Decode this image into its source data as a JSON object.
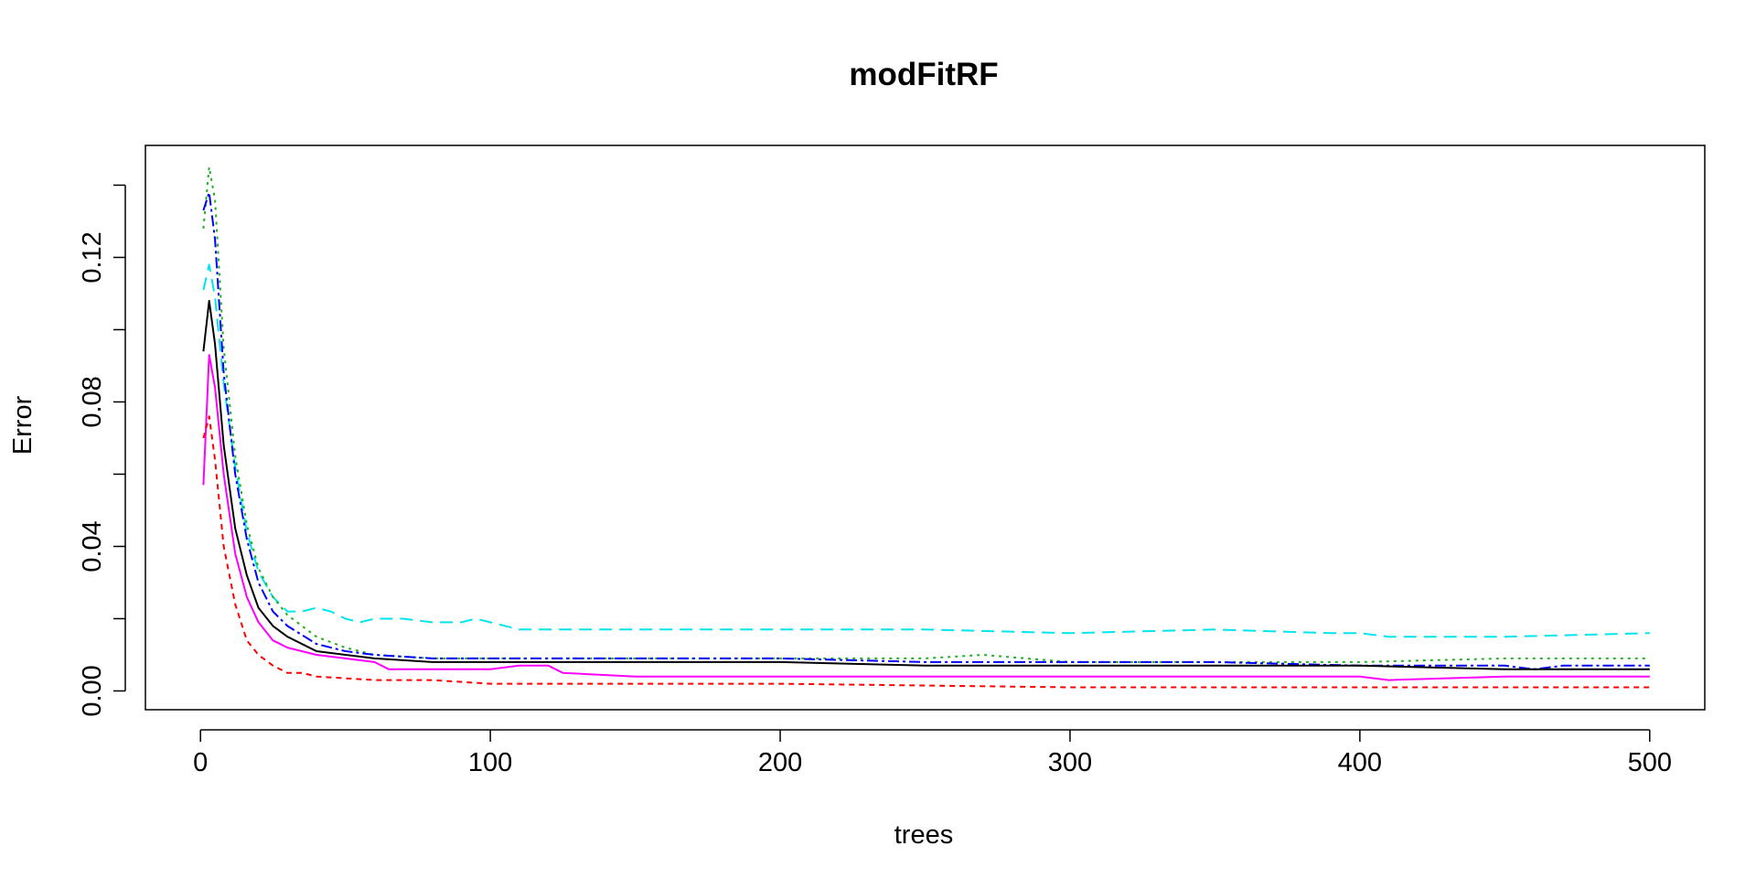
{
  "chart_data": {
    "type": "line",
    "title": "modFitRF",
    "xlabel": "trees",
    "ylabel": "Error",
    "xlim": [
      -19,
      519
    ],
    "ylim": [
      -0.0052,
      0.151
    ],
    "xticks": [
      0,
      100,
      200,
      300,
      400,
      500
    ],
    "xtick_labels": [
      "0",
      "100",
      "200",
      "300",
      "400",
      "500"
    ],
    "yticks": [
      0.0,
      0.02,
      0.04,
      0.06,
      0.08,
      0.1,
      0.12,
      0.14
    ],
    "ytick_labels": [
      "0.00",
      "",
      "0.04",
      "",
      "0.08",
      "",
      "0.12",
      ""
    ],
    "grid": false,
    "legend": "none",
    "series": [
      {
        "color": "#00e5ee",
        "dash": "14,8",
        "x": [
          1,
          3,
          5,
          8,
          12,
          16,
          20,
          25,
          30,
          35,
          40,
          45,
          50,
          55,
          60,
          70,
          80,
          90,
          95,
          100,
          110,
          120,
          150,
          200,
          250,
          300,
          350,
          390,
          400,
          410,
          450,
          500
        ],
        "values": [
          0.111,
          0.118,
          0.109,
          0.085,
          0.062,
          0.044,
          0.033,
          0.026,
          0.022,
          0.022,
          0.023,
          0.022,
          0.02,
          0.019,
          0.02,
          0.02,
          0.019,
          0.019,
          0.02,
          0.019,
          0.017,
          0.017,
          0.017,
          0.017,
          0.017,
          0.016,
          0.017,
          0.016,
          0.016,
          0.015,
          0.015,
          0.016
        ]
      },
      {
        "color": "#22b022",
        "dash": "3,5",
        "x": [
          1,
          3,
          5,
          8,
          12,
          16,
          20,
          25,
          30,
          40,
          50,
          60,
          80,
          100,
          120,
          150,
          200,
          250,
          270,
          300,
          350,
          400,
          450,
          500
        ],
        "values": [
          0.128,
          0.145,
          0.136,
          0.095,
          0.065,
          0.046,
          0.034,
          0.026,
          0.021,
          0.015,
          0.012,
          0.01,
          0.009,
          0.009,
          0.009,
          0.009,
          0.009,
          0.009,
          0.01,
          0.008,
          0.008,
          0.008,
          0.009,
          0.009
        ]
      },
      {
        "color": "#0000ff",
        "dash": "12,4,3,4",
        "x": [
          1,
          3,
          5,
          8,
          12,
          16,
          20,
          25,
          30,
          40,
          50,
          60,
          80,
          100,
          150,
          200,
          250,
          300,
          350,
          400,
          450,
          460,
          470,
          500
        ],
        "values": [
          0.133,
          0.138,
          0.125,
          0.088,
          0.06,
          0.042,
          0.03,
          0.022,
          0.018,
          0.013,
          0.011,
          0.01,
          0.009,
          0.009,
          0.009,
          0.009,
          0.008,
          0.008,
          0.008,
          0.007,
          0.007,
          0.006,
          0.007,
          0.007
        ]
      },
      {
        "color": "#000000",
        "dash": "",
        "x": [
          1,
          3,
          5,
          8,
          12,
          16,
          20,
          25,
          30,
          40,
          50,
          60,
          80,
          100,
          150,
          200,
          250,
          300,
          350,
          400,
          450,
          500
        ],
        "values": [
          0.094,
          0.108,
          0.096,
          0.068,
          0.045,
          0.032,
          0.023,
          0.018,
          0.015,
          0.011,
          0.01,
          0.009,
          0.008,
          0.008,
          0.008,
          0.008,
          0.007,
          0.007,
          0.007,
          0.007,
          0.006,
          0.006
        ]
      },
      {
        "color": "#ff00ff",
        "dash": "",
        "x": [
          1,
          3,
          5,
          8,
          12,
          16,
          20,
          25,
          30,
          40,
          50,
          60,
          65,
          70,
          100,
          110,
          120,
          125,
          150,
          200,
          250,
          300,
          350,
          400,
          410,
          450,
          500
        ],
        "values": [
          0.057,
          0.093,
          0.084,
          0.06,
          0.038,
          0.026,
          0.019,
          0.014,
          0.012,
          0.01,
          0.009,
          0.008,
          0.006,
          0.006,
          0.006,
          0.007,
          0.007,
          0.005,
          0.004,
          0.004,
          0.004,
          0.004,
          0.004,
          0.004,
          0.003,
          0.004,
          0.004
        ]
      },
      {
        "color": "#ff0000",
        "dash": "6,5",
        "x": [
          1,
          3,
          5,
          8,
          12,
          16,
          20,
          25,
          30,
          35,
          40,
          60,
          80,
          100,
          150,
          200,
          300,
          400,
          500
        ],
        "values": [
          0.07,
          0.076,
          0.064,
          0.04,
          0.024,
          0.014,
          0.01,
          0.007,
          0.005,
          0.005,
          0.004,
          0.003,
          0.003,
          0.002,
          0.002,
          0.002,
          0.001,
          0.001,
          0.001
        ]
      }
    ]
  }
}
